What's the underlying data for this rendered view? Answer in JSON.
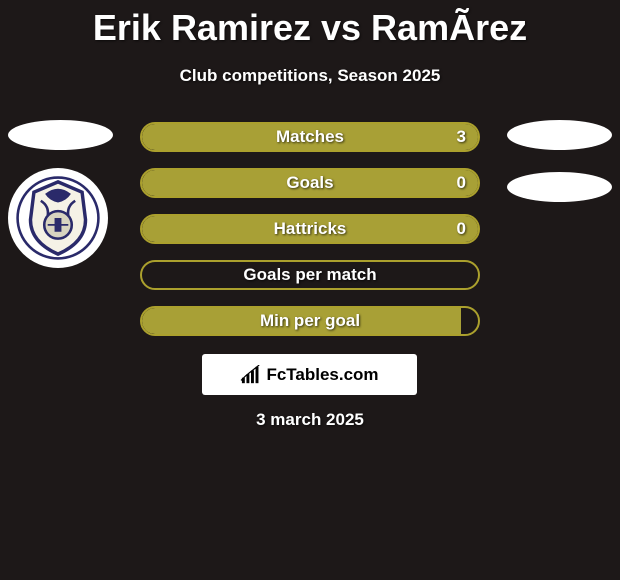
{
  "title": "Erik Ramirez vs RamÃ­rez",
  "subtitle": "Club competitions, Season 2025",
  "date": "3 march 2025",
  "brand": "FcTables.com",
  "colors": {
    "title": "#ffffff",
    "background": "#1d1818",
    "bar_border": "#aba02d",
    "bar_fill": "#a8a036",
    "ellipse": "#ffffff"
  },
  "left": {
    "photo_ellipse": true,
    "club_logo_shown": true
  },
  "right": {
    "photo_ellipse": true,
    "secondary_ellipse": true
  },
  "stats": [
    {
      "label": "Matches",
      "value": "3",
      "fill_pct": 100
    },
    {
      "label": "Goals",
      "value": "0",
      "fill_pct": 100
    },
    {
      "label": "Hattricks",
      "value": "0",
      "fill_pct": 100
    },
    {
      "label": "Goals per match",
      "value": "",
      "fill_pct": 0
    },
    {
      "label": "Min per goal",
      "value": "",
      "fill_pct": 95
    }
  ]
}
